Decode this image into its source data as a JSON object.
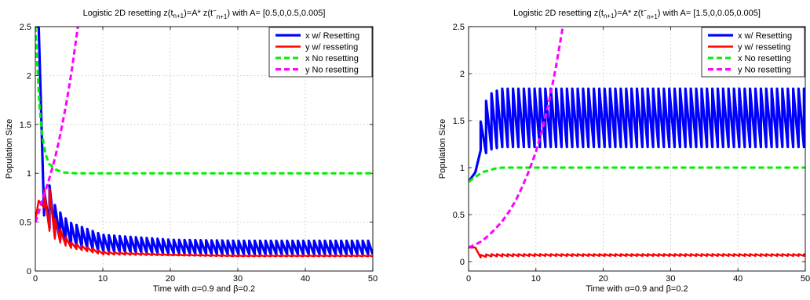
{
  "chart_data": [
    {
      "type": "line",
      "title_prefix": "Logistic 2D resetting z(t",
      "title_sub1": "n+1",
      "title_mid1": ")=A* z(t",
      "title_sup": "−",
      "title_sub2": "n+1",
      "title_suffix": ") with A= [0.5,0,0.5,0.005]",
      "xlabel": "Time with α=0.9 and β=0.2",
      "ylabel": "Population Size",
      "xlim": [
        0,
        50
      ],
      "ylim": [
        0,
        2.5
      ],
      "xticks": [
        "0",
        "10",
        "20",
        "30",
        "40",
        "50"
      ],
      "yticks": [
        "0",
        "0.5",
        "1",
        "1.5",
        "2",
        "2.5"
      ],
      "grid": true,
      "legend_position": "top-right",
      "series": [
        {
          "name": "x w/ Resetting",
          "color": "#0000ff",
          "style": "solid",
          "reset_period": 0.8,
          "x": [
            0,
            0.5,
            1.0,
            1.5,
            2.0,
            3,
            5,
            10,
            20,
            30,
            50
          ],
          "peak": [
            2.5,
            2.5,
            0.8,
            0.85,
            0.9,
            0.65,
            0.5,
            0.37,
            0.32,
            0.31,
            0.31
          ],
          "trough": [
            2.5,
            2.5,
            0.6,
            0.55,
            0.45,
            0.35,
            0.27,
            0.2,
            0.18,
            0.17,
            0.17
          ]
        },
        {
          "name": "y w/ resseting",
          "color": "#ff0000",
          "style": "solid",
          "reset_period": 0.8,
          "x": [
            0,
            0.5,
            1.0,
            1.5,
            2.0,
            3,
            5,
            10,
            20,
            30,
            50
          ],
          "peak": [
            0.52,
            0.72,
            0.8,
            0.85,
            0.88,
            0.5,
            0.3,
            0.2,
            0.17,
            0.16,
            0.16
          ],
          "trough": [
            0.52,
            0.72,
            0.72,
            0.6,
            0.42,
            0.32,
            0.24,
            0.17,
            0.16,
            0.15,
            0.15
          ]
        },
        {
          "name": "x No resetting",
          "color": "#00ee00",
          "style": "dashed",
          "x": [
            0,
            0.3,
            0.6,
            1,
            1.5,
            2,
            3,
            4,
            6,
            10,
            50
          ],
          "y": [
            2.5,
            2.1,
            1.7,
            1.4,
            1.2,
            1.1,
            1.04,
            1.01,
            1.0,
            1.0,
            1.0
          ]
        },
        {
          "name": "y No resetting",
          "color": "#ff00ff",
          "style": "dashed",
          "x": [
            0,
            0.5,
            1,
            1.5,
            2,
            2.5,
            3,
            3.5,
            4,
            4.5,
            5,
            5.5,
            6,
            6.3
          ],
          "y": [
            0.5,
            0.6,
            0.72,
            0.82,
            0.93,
            1.05,
            1.18,
            1.33,
            1.5,
            1.68,
            1.88,
            2.1,
            2.35,
            2.5
          ]
        }
      ]
    },
    {
      "type": "line",
      "title_prefix": "Logistic 2D resetting z(t",
      "title_sub1": "n+1",
      "title_mid1": ")=A* z(t",
      "title_sup": "−",
      "title_sub2": "n+1",
      "title_suffix": ") with A= [1.5,0,0.05,0.005]",
      "xlabel": "Time with α=0.9 and β=0.2",
      "ylabel": "Population Size",
      "xlim": [
        0,
        50
      ],
      "ylim": [
        -0.1,
        2.5
      ],
      "xticks": [
        "0",
        "10",
        "20",
        "30",
        "40",
        "50"
      ],
      "yticks": [
        "0",
        "0.5",
        "1",
        "1.5",
        "2",
        "2.5"
      ],
      "grid": true,
      "legend_position": "top-right",
      "series": [
        {
          "name": "x w/ Resetting",
          "color": "#0000ff",
          "style": "solid",
          "reset_period": 0.8,
          "x": [
            0,
            1,
            1.5,
            2.5,
            3.5,
            5,
            10,
            50
          ],
          "peak": [
            0.85,
            0.95,
            1.4,
            1.7,
            1.8,
            1.84,
            1.84,
            1.84
          ],
          "trough": [
            0.85,
            0.95,
            1.2,
            1.15,
            1.2,
            1.22,
            1.22,
            1.22
          ]
        },
        {
          "name": "y w/ resseting",
          "color": "#ff0000",
          "style": "solid",
          "reset_period": 0.8,
          "x": [
            0,
            1,
            1.5,
            3,
            10,
            50
          ],
          "peak": [
            0.15,
            0.15,
            0.07,
            0.08,
            0.08,
            0.08
          ],
          "trough": [
            0.15,
            0.15,
            0.04,
            0.055,
            0.06,
            0.06
          ]
        },
        {
          "name": "x No resetting",
          "color": "#00ee00",
          "style": "dashed",
          "x": [
            0,
            1,
            2,
            3,
            4,
            5,
            6,
            10,
            50
          ],
          "y": [
            0.85,
            0.9,
            0.95,
            0.97,
            0.99,
            1.0,
            1.0,
            1.0,
            1.0
          ]
        },
        {
          "name": "y No resetting",
          "color": "#ff00ff",
          "style": "dashed",
          "x": [
            0,
            1,
            2,
            3,
            4,
            5,
            6,
            7,
            8,
            9,
            10,
            11,
            12,
            13,
            14
          ],
          "y": [
            0.15,
            0.18,
            0.22,
            0.28,
            0.35,
            0.43,
            0.53,
            0.65,
            0.8,
            0.97,
            1.17,
            1.42,
            1.72,
            2.08,
            2.5
          ]
        }
      ]
    }
  ]
}
